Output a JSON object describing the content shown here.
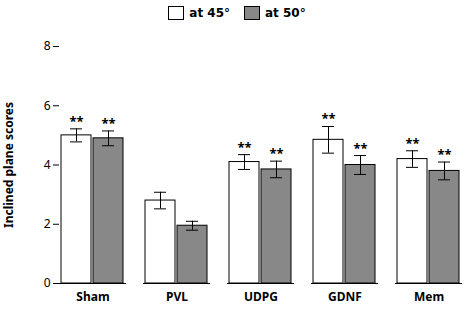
{
  "chart_data": {
    "type": "bar",
    "ylabel": "Inclined plane scores",
    "categories": [
      "Sham",
      "PVL",
      "UDPG",
      "GDNF",
      "Mem"
    ],
    "series": [
      {
        "name": "at 45°",
        "color": "#ffffff",
        "values": [
          5.0,
          2.8,
          4.1,
          4.85,
          4.2
        ],
        "errors": [
          0.22,
          0.28,
          0.25,
          0.45,
          0.28
        ],
        "annotations": [
          "**",
          null,
          "**",
          "**",
          "**"
        ]
      },
      {
        "name": "at 50°",
        "color": "#888888",
        "values": [
          4.9,
          1.95,
          3.85,
          4.0,
          3.8
        ],
        "errors": [
          0.25,
          0.15,
          0.28,
          0.32,
          0.3
        ],
        "annotations": [
          "**",
          null,
          "**",
          "**",
          "**"
        ]
      }
    ],
    "ylim": [
      0,
      8
    ],
    "yticks": [
      0,
      2,
      4,
      6,
      8
    ],
    "grid": false,
    "legend": "top"
  }
}
